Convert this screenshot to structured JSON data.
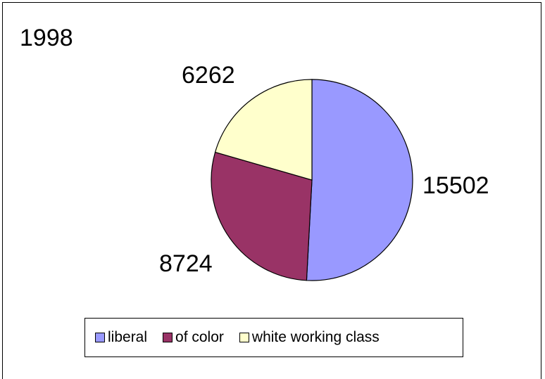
{
  "chart_data": {
    "type": "pie",
    "title": "1998",
    "categories": [
      "liberal",
      "of color",
      "white working class"
    ],
    "values": [
      15502,
      8724,
      6262
    ],
    "colors": [
      "#9999ff",
      "#993366",
      "#ffffcc"
    ],
    "legend_position": "bottom",
    "data_labels": [
      "15502",
      "8724",
      "6262"
    ]
  }
}
